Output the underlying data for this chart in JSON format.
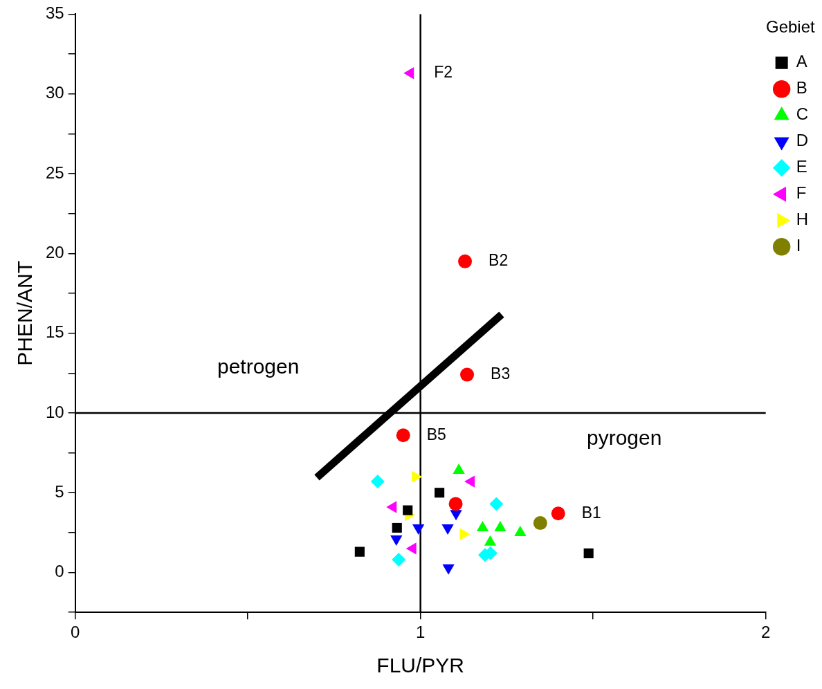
{
  "chart_data": {
    "type": "scatter",
    "xlabel": "FLU/PYR",
    "ylabel": "PHEN/ANT",
    "legend_title": "Gebiet",
    "legend": "top right",
    "grid": false,
    "xlim": [
      0,
      2
    ],
    "xticks": [
      0,
      {
        "value": 0.5,
        "label": null
      },
      1,
      {
        "value": 1.5,
        "label": null
      },
      2
    ],
    "ylim": [
      -2.5,
      35
    ],
    "yticks": [
      {
        "value": -2.5,
        "label": null
      },
      0,
      {
        "value": 2.5,
        "label": null
      },
      5,
      {
        "value": 7.5,
        "label": null
      },
      10,
      {
        "value": 12.5,
        "label": null
      },
      15,
      {
        "value": 17.5,
        "label": null
      },
      20,
      {
        "value": 22.5,
        "label": null
      },
      25,
      {
        "value": 27.5,
        "label": null
      },
      30,
      {
        "value": 32.5,
        "label": null
      },
      35
    ],
    "series": [
      {
        "name": "A",
        "color": "#000000",
        "marker": "square",
        "x": [
          1.055,
          0.963,
          0.932,
          0.824,
          1.487
        ],
        "values": [
          5.0,
          3.9,
          2.8,
          1.3,
          1.2
        ]
      },
      {
        "name": "B",
        "color": "#ff0000",
        "marker": "circle",
        "x": [
          1.102,
          1.399,
          1.129,
          1.135,
          0.95
        ],
        "values": [
          4.3,
          3.7,
          19.5,
          12.4,
          8.6
        ]
      },
      {
        "name": "C",
        "color": "#00ff00",
        "marker": "triangle",
        "x": [
          1.111,
          1.18,
          1.231,
          1.289,
          1.202
        ],
        "values": [
          6.4,
          2.8,
          2.8,
          2.5,
          1.9
        ]
      },
      {
        "name": "D",
        "color": "#0000ff",
        "marker": "triangle-down",
        "x": [
          1.103,
          0.994,
          1.079,
          0.93,
          1.081
        ],
        "values": [
          3.7,
          2.8,
          2.8,
          2.1,
          0.3
        ]
      },
      {
        "name": "E",
        "color": "#00ffff",
        "marker": "diamond",
        "x": [
          0.876,
          1.22,
          0.937,
          1.187,
          1.203
        ],
        "values": [
          5.7,
          4.3,
          0.8,
          1.1,
          1.2
        ]
      },
      {
        "name": "F",
        "color": "#ff00ff",
        "marker": "triangle-left",
        "x": [
          0.971,
          1.147,
          0.921,
          0.978
        ],
        "values": [
          31.3,
          5.7,
          4.1,
          1.5
        ]
      },
      {
        "name": "H",
        "color": "#ffff00",
        "marker": "triangle-right",
        "x": [
          0.985,
          0.965,
          1.124
        ],
        "values": [
          6.0,
          3.6,
          2.4
        ]
      },
      {
        "name": "I",
        "color": "#808000",
        "marker": "circle",
        "x": [
          1.347
        ],
        "values": [
          3.1
        ]
      },
      {
        "type": "line",
        "color": "#000000",
        "marker": "none",
        "x": [
          0.7,
          1.235
        ],
        "values": [
          5.95,
          16.17
        ]
      }
    ],
    "ref_lines": [
      {
        "axis": "x",
        "value": 1,
        "color": "#000000"
      },
      {
        "axis": "y",
        "value": 10,
        "color": "#000000"
      }
    ],
    "annotations": [
      {
        "text": "F2",
        "x": 0.971,
        "y": 31.3
      },
      {
        "text": "B2",
        "x": 1.129,
        "y": 19.5
      },
      {
        "text": "B3",
        "x": 1.135,
        "y": 12.4
      },
      {
        "text": "B5",
        "x": 0.95,
        "y": 8.6
      },
      {
        "text": "B1",
        "x": 1.399,
        "y": 3.7
      },
      "petrogen",
      "pyrogen"
    ]
  }
}
